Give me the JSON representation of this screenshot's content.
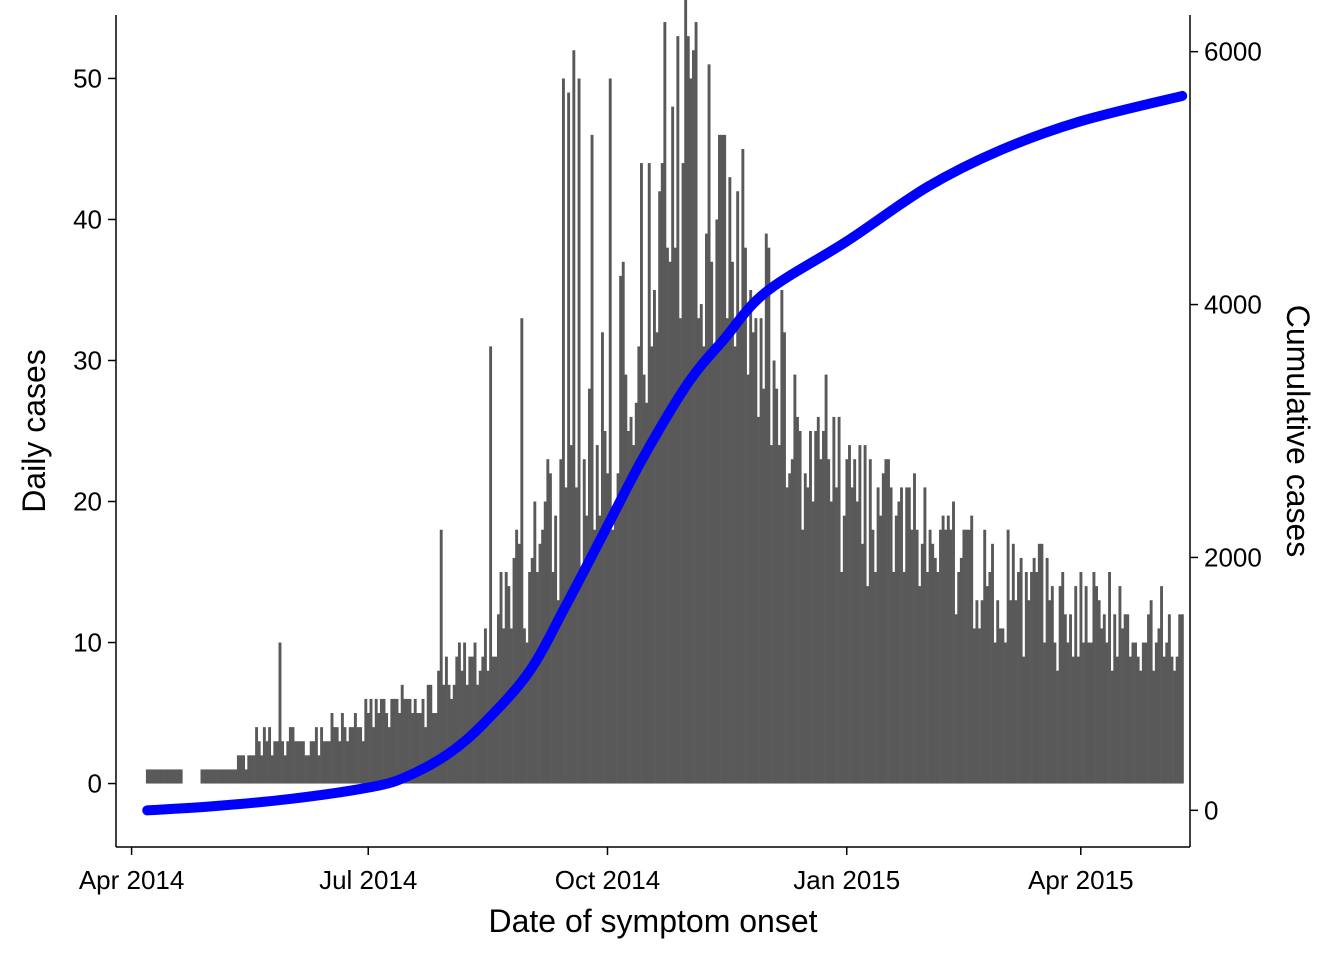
{
  "chart_data": {
    "type": "bar",
    "xlabel": "Date of symptom onset",
    "ylabel": "Daily cases",
    "y2label": "Cumulative cases",
    "x_range": [
      "2014-03-26",
      "2015-05-13"
    ],
    "ylim": [
      -4.5,
      54.5
    ],
    "y2lim": [
      -290,
      6290
    ],
    "x_ticks": [
      {
        "date": "2014-04-01",
        "label": "Apr 2014"
      },
      {
        "date": "2014-07-01",
        "label": "Jul 2014"
      },
      {
        "date": "2014-10-01",
        "label": "Oct 2014"
      },
      {
        "date": "2015-01-01",
        "label": "Jan 2015"
      },
      {
        "date": "2015-04-01",
        "label": "Apr 2015"
      }
    ],
    "y_ticks": [
      0,
      10,
      20,
      30,
      40,
      50
    ],
    "y2_ticks": [
      0,
      2000,
      4000,
      6000
    ],
    "grid": false,
    "legend": "none",
    "daily_series": {
      "start": "2014-04-07",
      "end": "2015-05-10",
      "weekly_values": [
        1,
        1,
        0,
        1,
        1,
        2,
        3,
        3,
        3,
        3,
        4,
        4,
        5,
        5,
        6,
        6,
        7,
        9,
        10,
        12,
        14,
        16,
        18,
        20,
        22,
        25,
        30,
        38,
        44,
        45,
        42,
        38,
        36,
        33,
        30,
        27,
        25,
        23,
        21,
        20,
        19,
        18,
        18,
        17,
        16,
        15,
        14,
        14,
        13,
        13,
        12,
        12,
        12,
        11,
        11,
        11,
        10,
        10,
        9,
        9,
        8,
        8
      ],
      "peaks": [
        {
          "date": "2014-05-28",
          "value": 10
        },
        {
          "date": "2014-07-29",
          "value": 18
        },
        {
          "date": "2014-08-17",
          "value": 31
        },
        {
          "date": "2014-08-29",
          "value": 33
        },
        {
          "date": "2014-09-14",
          "value": 50
        },
        {
          "date": "2014-09-16",
          "value": 49
        },
        {
          "date": "2014-09-18",
          "value": 52
        },
        {
          "date": "2014-09-20",
          "value": 50
        },
        {
          "date": "2014-09-25",
          "value": 46
        },
        {
          "date": "2014-10-02",
          "value": 50
        },
        {
          "date": "2014-10-14",
          "value": 44
        },
        {
          "date": "2014-10-22",
          "value": 44
        },
        {
          "date": "2014-11-05",
          "value": 33
        },
        {
          "date": "2014-12-04",
          "value": 30
        },
        {
          "date": "2015-01-22",
          "value": 21
        },
        {
          "date": "2015-02-10",
          "value": 18
        },
        {
          "date": "2015-03-19",
          "value": 16
        },
        {
          "date": "2015-05-06",
          "value": 9
        }
      ]
    },
    "cumulative_series": {
      "name": "Cumulative cases",
      "color": "#0000ff",
      "points": [
        {
          "date": "2014-04-07",
          "value": 0
        },
        {
          "date": "2014-05-01",
          "value": 30
        },
        {
          "date": "2014-06-01",
          "value": 90
        },
        {
          "date": "2014-07-01",
          "value": 180
        },
        {
          "date": "2014-07-15",
          "value": 260
        },
        {
          "date": "2014-08-01",
          "value": 450
        },
        {
          "date": "2014-08-15",
          "value": 700
        },
        {
          "date": "2014-09-01",
          "value": 1100
        },
        {
          "date": "2014-09-15",
          "value": 1620
        },
        {
          "date": "2014-10-01",
          "value": 2250
        },
        {
          "date": "2014-10-15",
          "value": 2800
        },
        {
          "date": "2014-11-01",
          "value": 3380
        },
        {
          "date": "2014-11-15",
          "value": 3730
        },
        {
          "date": "2014-12-01",
          "value": 4100
        },
        {
          "date": "2015-01-01",
          "value": 4500
        },
        {
          "date": "2015-02-01",
          "value": 4930
        },
        {
          "date": "2015-03-01",
          "value": 5220
        },
        {
          "date": "2015-04-01",
          "value": 5450
        },
        {
          "date": "2015-05-10",
          "value": 5650
        }
      ]
    },
    "colors": {
      "bars": "#595959",
      "line": "#0000ff",
      "axis": "#000000"
    }
  }
}
